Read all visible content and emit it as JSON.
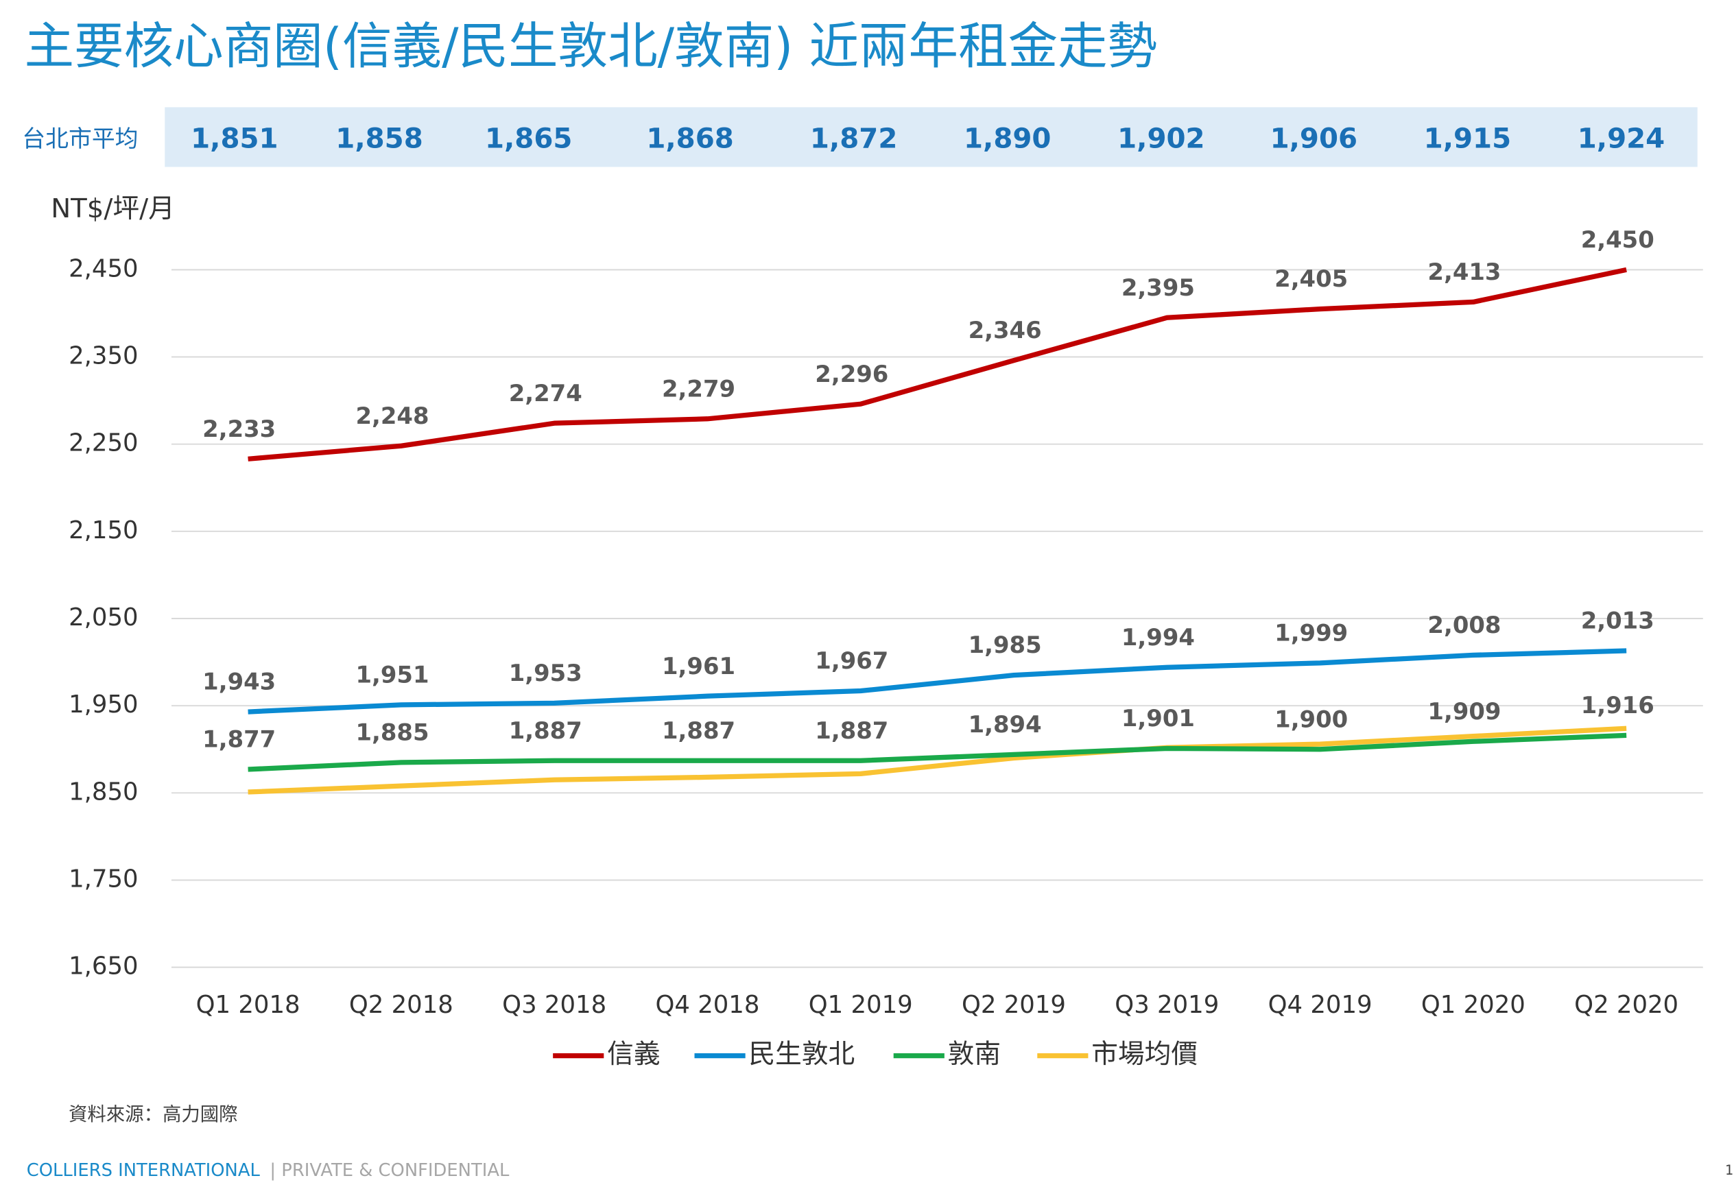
{
  "chart_data": {
    "type": "line",
    "title": "主要核心商圈(信義/民生敦北/敦南) 近兩年租金走勢",
    "average_row_label": "台北市平均",
    "y_label": "NT$/坪/月",
    "categories": [
      "Q1 2018",
      "Q2 2018",
      "Q3 2018",
      "Q4 2018",
      "Q1 2019",
      "Q2 2019",
      "Q3 2019",
      "Q4 2019",
      "Q1 2020",
      "Q2 2020"
    ],
    "series": [
      {
        "name": "信義",
        "color": "#c00000",
        "values": [
          2233,
          2248,
          2274,
          2279,
          2296,
          2346,
          2395,
          2405,
          2413,
          2450
        ],
        "value_labels": [
          "2,233",
          "2,248",
          "2,274",
          "2,279",
          "2,296",
          "2,346",
          "2,395",
          "2,405",
          "2,413",
          "2,450"
        ]
      },
      {
        "name": "民生敦北",
        "color": "#0a8ad2",
        "values": [
          1943,
          1951,
          1953,
          1961,
          1967,
          1985,
          1994,
          1999,
          2008,
          2013
        ],
        "value_labels": [
          "1,943",
          "1,951",
          "1,953",
          "1,961",
          "1,967",
          "1,985",
          "1,994",
          "1,999",
          "2,008",
          "2,013"
        ]
      },
      {
        "name": "敦南",
        "color": "#1aa94a",
        "values": [
          1877,
          1885,
          1887,
          1887,
          1887,
          1894,
          1901,
          1900,
          1909,
          1916
        ],
        "value_labels": [
          "1,877",
          "1,885",
          "1,887",
          "1,887",
          "1,887",
          "1,894",
          "1,901",
          "1,900",
          "1,909",
          "1,916"
        ]
      },
      {
        "name": "市場均價",
        "color": "#f9c232",
        "values": [
          1851,
          1858,
          1865,
          1868,
          1872,
          1890,
          1902,
          1906,
          1915,
          1924
        ],
        "value_labels": [
          "1,851",
          "1,858",
          "1,865",
          "1,868",
          "1,872",
          "1,890",
          "1,902",
          "1,906",
          "1,915",
          "1,924"
        ]
      }
    ],
    "ylim": [
      1650,
      2450
    ],
    "yticks": [
      {
        "value": 1650,
        "label": "1,650"
      },
      {
        "value": 1750,
        "label": "1,750"
      },
      {
        "value": 1850,
        "label": "1,850"
      },
      {
        "value": 1950,
        "label": "1,950"
      },
      {
        "value": 2050,
        "label": "2,050"
      },
      {
        "value": 2150,
        "label": "2,150"
      },
      {
        "value": 2250,
        "label": "2,250"
      },
      {
        "value": 2350,
        "label": "2,350"
      },
      {
        "value": 2450,
        "label": "2,450"
      }
    ],
    "grid": true,
    "source": "資料來源：高力國際",
    "footer_brand": "COLLIERS INTERNATIONAL",
    "footer_note": "| PRIVATE & CONFIDENTIAL",
    "page_number": "1"
  }
}
